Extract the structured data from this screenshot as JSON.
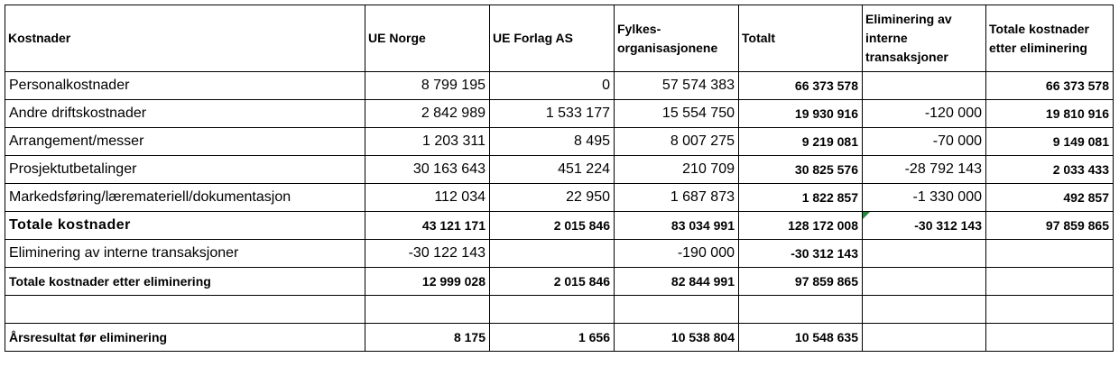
{
  "table": {
    "header": [
      "Kostnader",
      "UE Norge",
      "UE Forlag AS",
      "Fylkes-organisasjonene",
      "Totalt",
      "Eliminering av interne transaksjoner",
      "Totale kostnader etter eliminering"
    ],
    "rows": [
      [
        "Personalkostnader",
        "8 799 195",
        "0",
        "57 574 383",
        "66 373 578",
        null,
        "66 373 578"
      ],
      [
        "Andre driftskostnader",
        "2 842 989",
        "1 533 177",
        "15 554 750",
        "19 930 916",
        "-120 000",
        "19 810 916"
      ],
      [
        "Arrangement/messer",
        "1 203 311",
        "8 495",
        "8 007 275",
        "9 219 081",
        "-70 000",
        "9 149 081"
      ],
      [
        "Prosjektutbetalinger",
        "30 163 643",
        "451 224",
        "210 709",
        "30 825 576",
        "-28 792 143",
        "2 033 433"
      ],
      [
        "Markedsføring/læremateriell/dokumentasjon",
        "112 034",
        "22 950",
        "1 687 873",
        "1 822 857",
        "-1 330 000",
        "492 857"
      ],
      [
        "Totale kostnader",
        "43 121 171",
        "2 015 846",
        "83 034 991",
        "128 172 008",
        "-30 312 143",
        "97 859 865"
      ],
      [
        "Eliminering av interne transaksjoner",
        "-30 122 143",
        null,
        "-190 000",
        "-30 312 143",
        null,
        null
      ],
      [
        "Totale kostnader etter eliminering",
        "12 999 028",
        "2 015 846",
        "82 844 991",
        "97 859 865",
        null,
        null
      ],
      [
        null,
        null,
        null,
        null,
        null,
        null,
        null
      ],
      [
        "Årsresultat før eliminering",
        "8 175",
        "1 656",
        "10 538 804",
        "10 548 635",
        null,
        null
      ]
    ]
  }
}
